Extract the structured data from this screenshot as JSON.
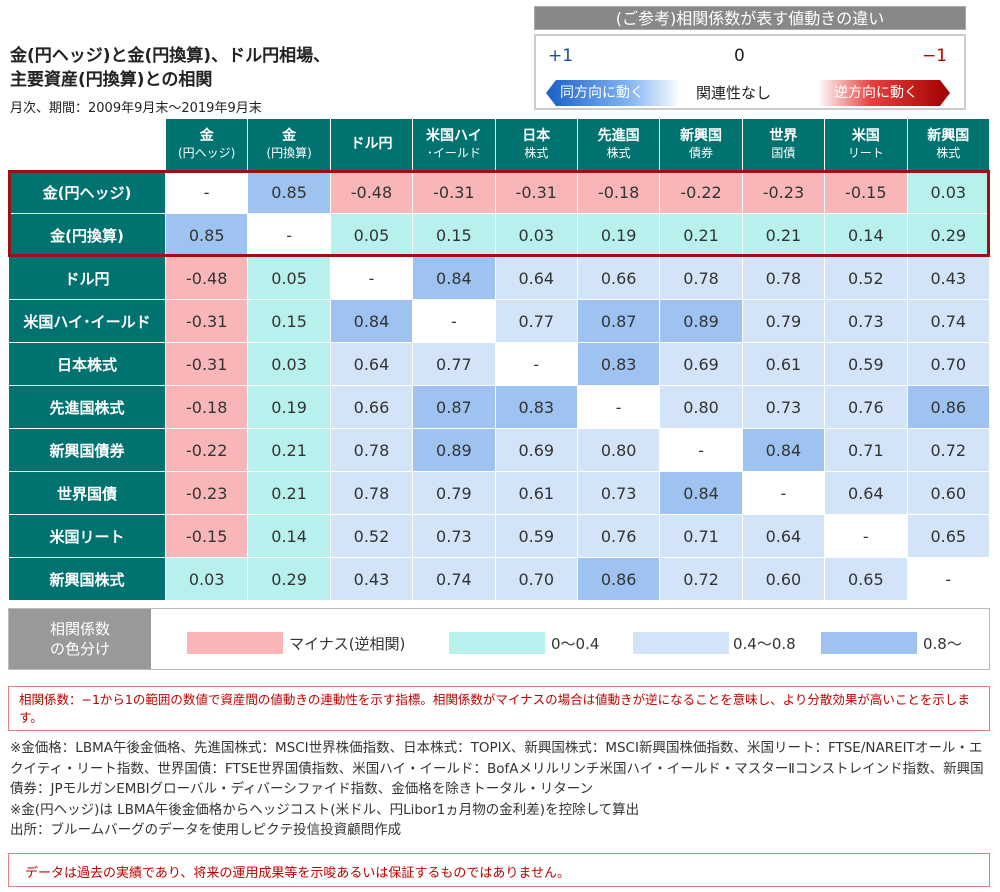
{
  "title_lines": [
    "金(円ヘッジ)と金(円換算)、ドル円相場、",
    "主要資産(円換算)との相関"
  ],
  "period": "月次、期間：2009年9月末～2019年9月末",
  "reference": {
    "heading": "(ご参考)相関係数が表す値動きの違い",
    "plus": "+1",
    "zero": "0",
    "minus": "−1",
    "same": "同方向に動く",
    "none": "関連性なし",
    "opposite": "逆方向に動く"
  },
  "colors": {
    "header": "#007370",
    "negative": "#f9b6b8",
    "low": "#b8f0ee",
    "mid": "#d3e3f8",
    "high": "#9fc3f0",
    "highlight_border": "#a01010"
  },
  "chart_data": {
    "type": "heatmap",
    "columns": [
      [
        "金",
        "(円ヘッジ)"
      ],
      [
        "金",
        "(円換算)"
      ],
      [
        "ドル円",
        ""
      ],
      [
        "米国ハイ",
        "･イールド"
      ],
      [
        "日本",
        "株式"
      ],
      [
        "先進国",
        "株式"
      ],
      [
        "新興国",
        "債券"
      ],
      [
        "世界",
        "国債"
      ],
      [
        "米国",
        "リート"
      ],
      [
        "新興国",
        "株式"
      ]
    ],
    "rows": [
      "金(円ヘッジ)",
      "金(円換算)",
      "ドル円",
      "米国ハイ･イールド",
      "日本株式",
      "先進国株式",
      "新興国債券",
      "世界国債",
      "米国リート",
      "新興国株式"
    ],
    "values": [
      [
        "-",
        "0.85",
        "-0.48",
        "-0.31",
        "-0.31",
        "-0.18",
        "-0.22",
        "-0.23",
        "-0.15",
        "0.03"
      ],
      [
        "0.85",
        "-",
        "0.05",
        "0.15",
        "0.03",
        "0.19",
        "0.21",
        "0.21",
        "0.14",
        "0.29"
      ],
      [
        "-0.48",
        "0.05",
        "-",
        "0.84",
        "0.64",
        "0.66",
        "0.78",
        "0.78",
        "0.52",
        "0.43"
      ],
      [
        "-0.31",
        "0.15",
        "0.84",
        "-",
        "0.77",
        "0.87",
        "0.89",
        "0.79",
        "0.73",
        "0.74"
      ],
      [
        "-0.31",
        "0.03",
        "0.64",
        "0.77",
        "-",
        "0.83",
        "0.69",
        "0.61",
        "0.59",
        "0.70"
      ],
      [
        "-0.18",
        "0.19",
        "0.66",
        "0.87",
        "0.83",
        "-",
        "0.80",
        "0.73",
        "0.76",
        "0.86"
      ],
      [
        "-0.22",
        "0.21",
        "0.78",
        "0.89",
        "0.69",
        "0.80",
        "-",
        "0.84",
        "0.71",
        "0.72"
      ],
      [
        "-0.23",
        "0.21",
        "0.78",
        "0.79",
        "0.61",
        "0.73",
        "0.84",
        "-",
        "0.64",
        "0.60"
      ],
      [
        "-0.15",
        "0.14",
        "0.52",
        "0.73",
        "0.59",
        "0.76",
        "0.71",
        "0.64",
        "-",
        "0.65"
      ],
      [
        "0.03",
        "0.29",
        "0.43",
        "0.74",
        "0.70",
        "0.86",
        "0.72",
        "0.60",
        "0.65",
        "-"
      ]
    ]
  },
  "legend": {
    "title_lines": [
      "相関係数",
      "の色分け"
    ],
    "items": [
      "マイナス(逆相関)",
      "0～0.4",
      "0.4～0.8",
      "0.8～"
    ]
  },
  "note_box": "相関係数：−1から1の範囲の数値で資産間の値動きの連動性を示す指標。相関係数がマイナスの場合は値動きが逆になることを意味し、より分散効果が高いことを示します。",
  "notes": [
    "※金価格：LBMA午後金価格、先進国株式：MSCI世界株価指数、日本株式：TOPIX、新興国株式：MSCI新興国株価指数、米国リート：FTSE/NAREITオール・エクイティ・リート指数、世界国債：FTSE世界国債指数、米国ハイ・イールド：BofAメリルリンチ米国ハイ・イールド・マスターⅡコンストレインド指数、新興国債券：JPモルガンEMBIグローバル・ディバーシファイド指数、金価格を除きトータル・リターン",
    "※金(円ヘッジ)は LBMA午後金価格からヘッジコスト(米ドル、円Libor1ヵ月物の金利差)を控除して算出",
    "出所：ブルームバーグのデータを使用しピクテ投信投資顧問作成"
  ],
  "disclaimer": "データは過去の実績であり、将来の運用成果等を示唆あるいは保証するものではありません。"
}
